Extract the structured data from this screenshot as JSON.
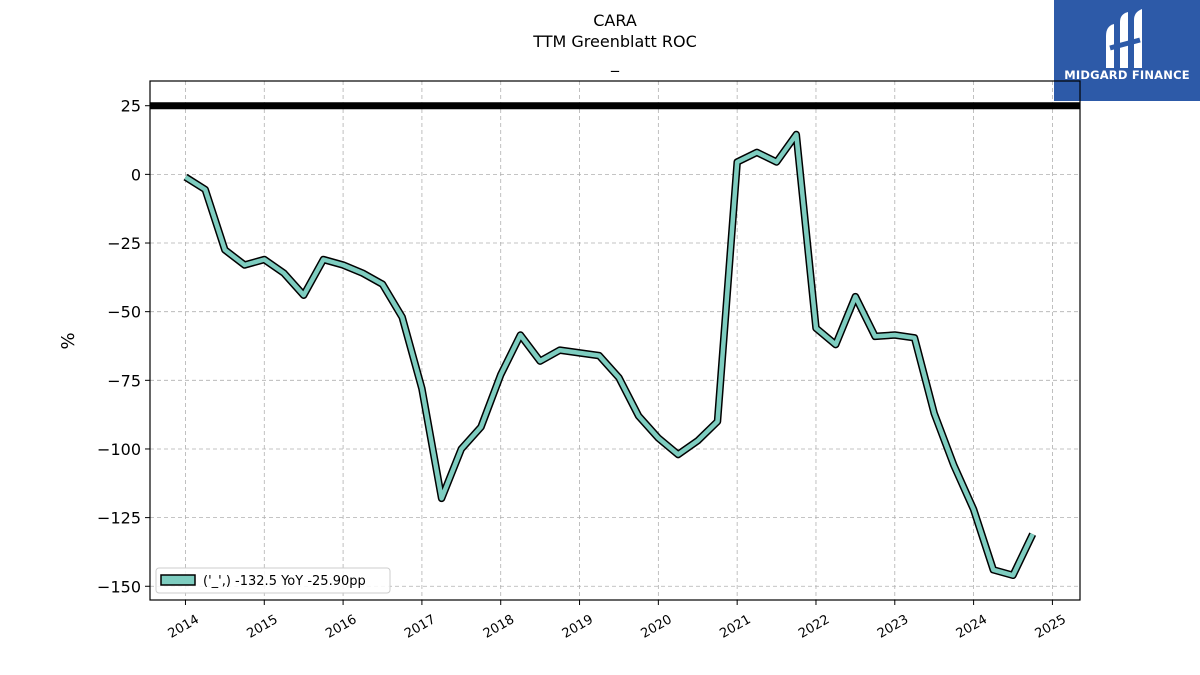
{
  "header": {
    "ticker": "CARA",
    "metric": "TTM Greenblatt ROC",
    "subtitle": "_"
  },
  "logo": {
    "text": "MIDGARD FINANCE",
    "bg_color": "#2d5aa8",
    "icon": "midgard-logo-icon"
  },
  "chart_data": {
    "type": "line",
    "title": "CARA\nTTM Greenblatt ROC\n_",
    "ylabel": "%",
    "xlabel": "",
    "ylim": [
      -155,
      34
    ],
    "xlim": [
      2013.55,
      2025.35
    ],
    "yticks": [
      25,
      0,
      -25,
      -50,
      -75,
      -100,
      -125,
      -150
    ],
    "ytick_labels": [
      "25",
      "0",
      "−25",
      "−50",
      "−75",
      "−100",
      "−125",
      "−150"
    ],
    "xticks": [
      2014,
      2015,
      2016,
      2017,
      2018,
      2019,
      2020,
      2021,
      2022,
      2023,
      2024,
      2025
    ],
    "xtick_labels": [
      "2014",
      "2015",
      "2016",
      "2017",
      "2018",
      "2019",
      "2020",
      "2021",
      "2022",
      "2023",
      "2024",
      "2025"
    ],
    "grid": true,
    "reference_line": {
      "y": 25,
      "color": "#000000"
    },
    "legend": {
      "position": "bottom-left",
      "label": "('_',) -132.5 YoY -25.90pp"
    },
    "series": [
      {
        "name": "('_',) -132.5 YoY -25.90pp",
        "color": "#7ecdc0",
        "edge_color": "#000000",
        "x": [
          2014.0,
          2014.25,
          2014.5,
          2014.75,
          2015.0,
          2015.25,
          2015.5,
          2015.75,
          2016.0,
          2016.25,
          2016.5,
          2016.75,
          2017.0,
          2017.25,
          2017.5,
          2017.75,
          2018.0,
          2018.25,
          2018.5,
          2018.75,
          2019.0,
          2019.25,
          2019.5,
          2019.75,
          2020.0,
          2020.25,
          2020.5,
          2020.75,
          2021.0,
          2021.25,
          2021.5,
          2021.75,
          2022.0,
          2022.25,
          2022.5,
          2022.75,
          2023.0,
          2023.25,
          2023.5,
          2023.75,
          2024.0,
          2024.25,
          2024.5,
          2024.75
        ],
        "values": [
          -1,
          -5.5,
          -27.5,
          -33,
          -31,
          -36,
          -44,
          -31,
          -33,
          -36,
          -40,
          -52,
          -78,
          -118,
          -100,
          -92,
          -73,
          -58.5,
          -68,
          -64,
          -65,
          -66,
          -74,
          -88,
          -96,
          -102,
          -97,
          -90,
          4.5,
          8,
          4.5,
          14.5,
          -56,
          -62,
          -44.5,
          -59,
          -58.5,
          -59.5,
          -87,
          -106,
          -122,
          -144,
          -146,
          -131
        ]
      }
    ]
  }
}
